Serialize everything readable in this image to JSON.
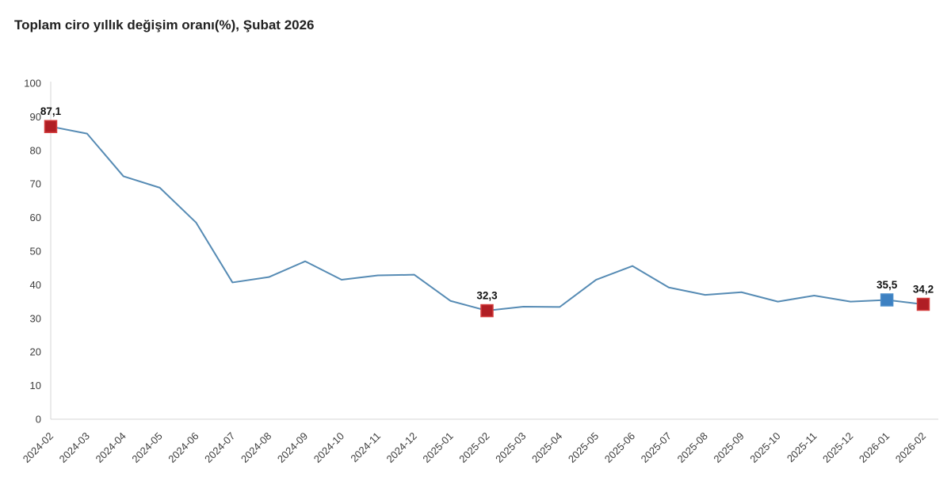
{
  "chart_data": {
    "type": "line",
    "title": "Toplam ciro yıllık değişim oranı(%), Şubat 2026",
    "xlabel": "",
    "ylabel": "",
    "ylim": [
      0,
      100
    ],
    "yticks": [
      0,
      10,
      20,
      30,
      40,
      50,
      60,
      70,
      80,
      90,
      100
    ],
    "grid": "off",
    "legend": "none",
    "categories": [
      "2024-02",
      "2024-03",
      "2024-04",
      "2024-05",
      "2024-06",
      "2024-07",
      "2024-08",
      "2024-09",
      "2024-10",
      "2024-11",
      "2024-12",
      "2025-01",
      "2025-02",
      "2025-03",
      "2025-04",
      "2025-05",
      "2025-06",
      "2025-07",
      "2025-08",
      "2025-09",
      "2025-10",
      "2025-11",
      "2025-12",
      "2026-01",
      "2026-02"
    ],
    "values": [
      87.1,
      85.0,
      72.3,
      68.9,
      58.5,
      40.7,
      42.3,
      47.0,
      41.5,
      42.8,
      43.0,
      35.2,
      32.3,
      33.5,
      33.4,
      41.5,
      45.6,
      39.2,
      37.0,
      37.8,
      35.0,
      36.8,
      35.0,
      35.5,
      34.2
    ],
    "highlighted_points": [
      {
        "index": 0,
        "category": "2024-02",
        "label": "87,1",
        "fill": "#b01e24",
        "stroke": "#d43c3c"
      },
      {
        "index": 12,
        "category": "2025-02",
        "label": "32,3",
        "fill": "#b01e24",
        "stroke": "#d43c3c"
      },
      {
        "index": 23,
        "category": "2026-01",
        "label": "35,5",
        "fill": "#3d81c2",
        "stroke": "#4a8cc9"
      },
      {
        "index": 24,
        "category": "2026-02",
        "label": "34,2",
        "fill": "#b01e24",
        "stroke": "#d43c3c"
      }
    ],
    "colors": {
      "line": "#568bb4",
      "axis_line": "#d6d6d6",
      "tick_label": "#3d3d3d",
      "data_label": "#111111",
      "title": "#212121"
    }
  }
}
